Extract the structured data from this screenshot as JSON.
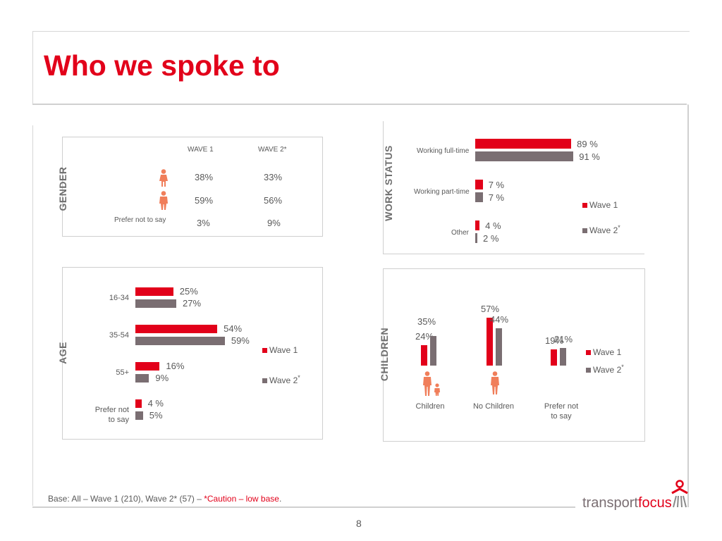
{
  "title": "Who we spoke to",
  "colors": {
    "wave1": "#e2001a",
    "wave2": "#7a6e72",
    "person_icon": "#f07e5a"
  },
  "icons": {
    "female": "female-person-icon",
    "male": "male-person-icon",
    "parent_child": "parent-child-icon",
    "adult": "adult-person-icon"
  },
  "chart_data": [
    {
      "id": "gender",
      "type": "table",
      "title": "GENDER",
      "columns": [
        "WAVE 1",
        "WAVE 2*"
      ],
      "rows": [
        {
          "label": "Female",
          "icon": "female-person-icon",
          "values": [
            "38%",
            "33%"
          ]
        },
        {
          "label": "Male",
          "icon": "male-person-icon",
          "values": [
            "59%",
            "56%"
          ]
        },
        {
          "label": "Prefer not to say",
          "values": [
            "3%",
            "9%"
          ]
        }
      ]
    },
    {
      "id": "work_status",
      "type": "bar",
      "orientation": "horizontal",
      "title": "WORK STATUS",
      "categories": [
        "Working full-time",
        "Working part-time",
        "Other"
      ],
      "series": [
        {
          "name": "Wave 1",
          "values": [
            89,
            7,
            4
          ],
          "labels": [
            "89 %",
            "7 %",
            "4 %"
          ]
        },
        {
          "name": "Wave 2",
          "marker": "*",
          "values": [
            91,
            7,
            2
          ],
          "labels": [
            "91 %",
            "7 %",
            "2 %"
          ]
        }
      ],
      "xlim": [
        0,
        100
      ]
    },
    {
      "id": "age",
      "type": "bar",
      "orientation": "horizontal",
      "title": "AGE",
      "categories": [
        "16-34",
        "35-54",
        "55+",
        "Prefer not to say"
      ],
      "category_lines": [
        [
          "16-34"
        ],
        [
          "35-54"
        ],
        [
          "55+"
        ],
        [
          "Prefer not",
          "to say"
        ]
      ],
      "series": [
        {
          "name": "Wave 1",
          "values": [
            25,
            54,
            16,
            4
          ],
          "labels": [
            "25%",
            "54%",
            "16%",
            "4 %"
          ]
        },
        {
          "name": "Wave 2",
          "marker": "*",
          "values": [
            27,
            59,
            9,
            5
          ],
          "labels": [
            "27%",
            "59%",
            "9%",
            "5%"
          ]
        }
      ],
      "xlim": [
        0,
        100
      ]
    },
    {
      "id": "children",
      "type": "bar",
      "orientation": "vertical",
      "title": "CHILDREN",
      "categories": [
        "Children",
        "No Children",
        "Prefer not to say"
      ],
      "category_lines": [
        [
          "Children"
        ],
        [
          "No Children"
        ],
        [
          "Prefer not",
          "to say"
        ]
      ],
      "series": [
        {
          "name": "Wave 1",
          "values": [
            24,
            57,
            19
          ],
          "labels": [
            "24%",
            "57%",
            "19%"
          ]
        },
        {
          "name": "Wave 2",
          "marker": "*",
          "values": [
            35,
            44,
            21
          ],
          "labels": [
            "35%",
            "44%",
            "21%"
          ]
        }
      ],
      "ylim": [
        0,
        60
      ]
    }
  ],
  "footer": {
    "base_text": "Base: All – Wave 1 (210), Wave 2* (57) – ",
    "caution_text": "*Caution – low base",
    "period": ".",
    "page_number": "8",
    "logo_text_1": "transport",
    "logo_text_2": "focus"
  }
}
